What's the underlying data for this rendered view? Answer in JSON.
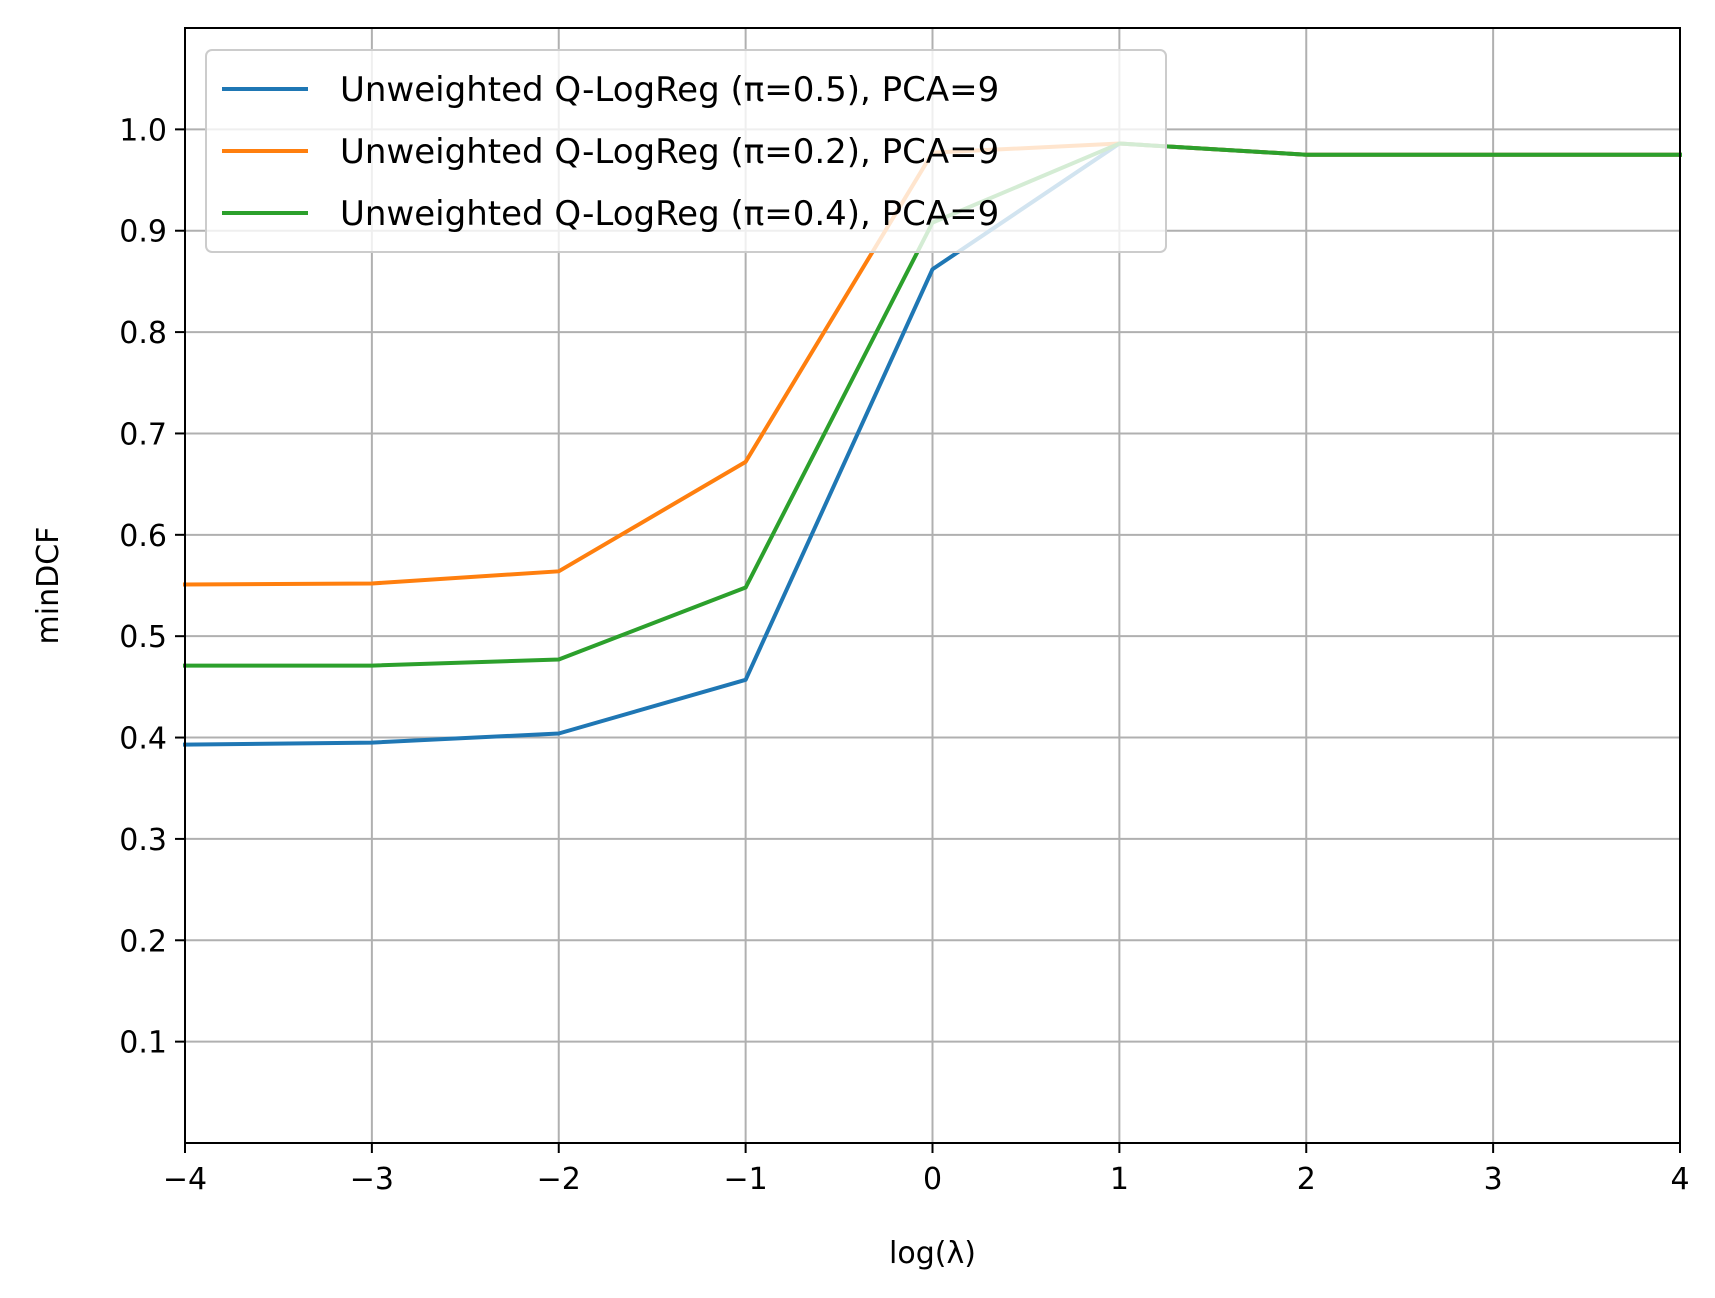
{
  "chart_data": {
    "type": "line",
    "xlabel": "log(λ)",
    "ylabel": "minDCF",
    "xlim": [
      -4,
      4
    ],
    "ylim": [
      0,
      1.1
    ],
    "grid": true,
    "legend_position": "top-left",
    "xticks": [
      -4,
      -3,
      -2,
      -1,
      0,
      1,
      2,
      3,
      4
    ],
    "xtick_labels": [
      "−4",
      "−3",
      "−2",
      "−1",
      "0",
      "1",
      "2",
      "3",
      "4"
    ],
    "yticks": [
      0.1,
      0.2,
      0.3,
      0.4,
      0.5,
      0.6,
      0.7,
      0.8,
      0.9,
      1.0
    ],
    "ytick_labels": [
      "0.1",
      "0.2",
      "0.3",
      "0.4",
      "0.5",
      "0.6",
      "0.7",
      "0.8",
      "0.9",
      "1.0"
    ],
    "x": [
      -4,
      -3,
      -2,
      -1,
      0,
      1,
      2,
      3,
      4
    ],
    "series": [
      {
        "name": "Unweighted Q-LogReg (π=0.5), PCA=9",
        "color": "#1f77b4",
        "values": [
          0.393,
          0.395,
          0.404,
          0.457,
          0.862,
          0.986,
          0.975,
          0.975,
          0.975
        ]
      },
      {
        "name": "Unweighted Q-LogReg (π=0.2), PCA=9",
        "color": "#ff7f0e",
        "values": [
          0.551,
          0.552,
          0.564,
          0.672,
          0.977,
          0.986,
          0.975,
          0.975,
          0.975
        ]
      },
      {
        "name": "Unweighted Q-LogReg (π=0.4), PCA=9",
        "color": "#2ca02c",
        "values": [
          0.471,
          0.471,
          0.477,
          0.548,
          0.908,
          0.986,
          0.975,
          0.975,
          0.975
        ]
      }
    ]
  }
}
